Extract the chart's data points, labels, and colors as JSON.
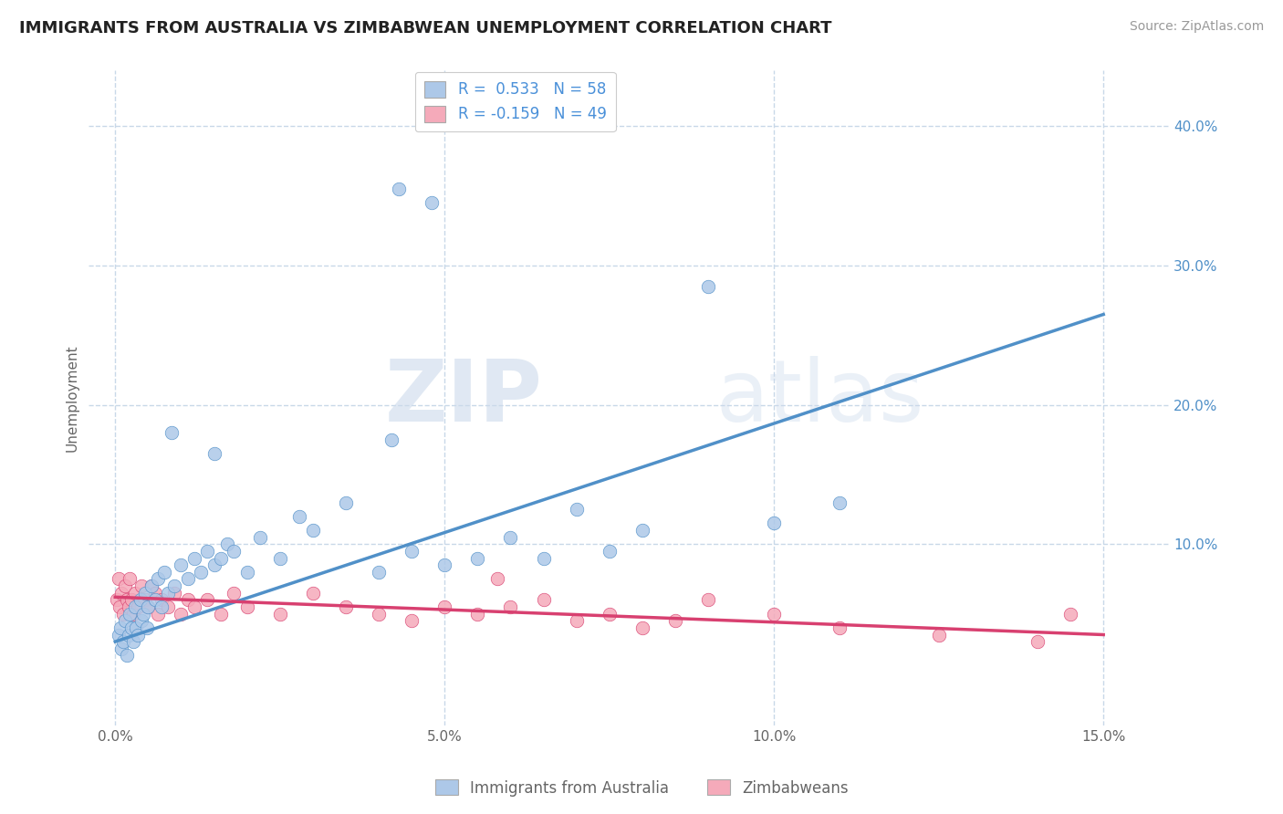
{
  "title": "IMMIGRANTS FROM AUSTRALIA VS ZIMBABWEAN UNEMPLOYMENT CORRELATION CHART",
  "source": "Source: ZipAtlas.com",
  "ylabel": "Unemployment",
  "x_tick_labels": [
    "0.0%",
    "5.0%",
    "10.0%",
    "15.0%"
  ],
  "x_tick_values": [
    0.0,
    5.0,
    10.0,
    15.0
  ],
  "y_tick_labels": [
    "10.0%",
    "20.0%",
    "30.0%",
    "40.0%"
  ],
  "y_tick_values": [
    10.0,
    20.0,
    30.0,
    40.0
  ],
  "xlim": [
    -0.4,
    16.0
  ],
  "ylim": [
    -3.0,
    44.0
  ],
  "legend_labels": [
    "Immigrants from Australia",
    "Zimbabweans"
  ],
  "R_blue": 0.533,
  "N_blue": 58,
  "R_pink": -0.159,
  "N_pink": 49,
  "blue_color": "#adc8e8",
  "blue_line_color": "#5090c8",
  "pink_color": "#f5aaba",
  "pink_line_color": "#d84070",
  "watermark_zip": "ZIP",
  "watermark_atlas": "atlas",
  "background_color": "#ffffff",
  "grid_color": "#c8d8e8",
  "title_color": "#222222",
  "axis_label_color": "#666666",
  "legend_text_color": "#4a90d9",
  "blue_scatter_x": [
    0.05,
    0.08,
    0.1,
    0.12,
    0.15,
    0.18,
    0.2,
    0.22,
    0.25,
    0.28,
    0.3,
    0.32,
    0.35,
    0.38,
    0.4,
    0.42,
    0.45,
    0.48,
    0.5,
    0.55,
    0.6,
    0.65,
    0.7,
    0.75,
    0.8,
    0.9,
    1.0,
    1.1,
    1.2,
    1.3,
    1.4,
    1.5,
    1.6,
    1.7,
    1.8,
    2.0,
    2.2,
    2.5,
    2.8,
    3.0,
    3.5,
    4.0,
    4.2,
    4.5,
    5.0,
    5.5,
    6.0,
    6.5,
    7.0,
    7.5,
    8.0,
    9.0,
    10.0,
    11.0,
    4.3,
    4.8,
    1.5,
    0.85
  ],
  "blue_scatter_y": [
    3.5,
    4.0,
    2.5,
    3.0,
    4.5,
    2.0,
    3.5,
    5.0,
    4.0,
    3.0,
    5.5,
    4.0,
    3.5,
    6.0,
    4.5,
    5.0,
    6.5,
    4.0,
    5.5,
    7.0,
    6.0,
    7.5,
    5.5,
    8.0,
    6.5,
    7.0,
    8.5,
    7.5,
    9.0,
    8.0,
    9.5,
    8.5,
    9.0,
    10.0,
    9.5,
    8.0,
    10.5,
    9.0,
    12.0,
    11.0,
    13.0,
    8.0,
    17.5,
    9.5,
    8.5,
    9.0,
    10.5,
    9.0,
    12.5,
    9.5,
    11.0,
    28.5,
    11.5,
    13.0,
    35.5,
    34.5,
    16.5,
    18.0
  ],
  "pink_scatter_x": [
    0.03,
    0.05,
    0.07,
    0.1,
    0.12,
    0.15,
    0.18,
    0.2,
    0.22,
    0.25,
    0.28,
    0.3,
    0.35,
    0.4,
    0.45,
    0.5,
    0.55,
    0.6,
    0.65,
    0.7,
    0.8,
    0.9,
    1.0,
    1.1,
    1.2,
    1.4,
    1.6,
    1.8,
    2.0,
    2.5,
    3.0,
    3.5,
    4.0,
    4.5,
    5.0,
    5.5,
    6.0,
    6.5,
    7.0,
    7.5,
    8.0,
    8.5,
    9.0,
    10.0,
    11.0,
    12.5,
    14.0,
    14.5,
    5.8
  ],
  "pink_scatter_y": [
    6.0,
    7.5,
    5.5,
    6.5,
    5.0,
    7.0,
    6.0,
    5.5,
    7.5,
    6.0,
    5.0,
    6.5,
    5.5,
    7.0,
    6.0,
    5.5,
    7.0,
    6.5,
    5.0,
    6.0,
    5.5,
    6.5,
    5.0,
    6.0,
    5.5,
    6.0,
    5.0,
    6.5,
    5.5,
    5.0,
    6.5,
    5.5,
    5.0,
    4.5,
    5.5,
    5.0,
    5.5,
    6.0,
    4.5,
    5.0,
    4.0,
    4.5,
    6.0,
    5.0,
    4.0,
    3.5,
    3.0,
    5.0,
    7.5
  ],
  "blue_trendline_x": [
    0.0,
    15.0
  ],
  "blue_trendline_y": [
    3.0,
    26.5
  ],
  "pink_trendline_x": [
    0.0,
    15.0
  ],
  "pink_trendline_y": [
    6.2,
    3.5
  ]
}
